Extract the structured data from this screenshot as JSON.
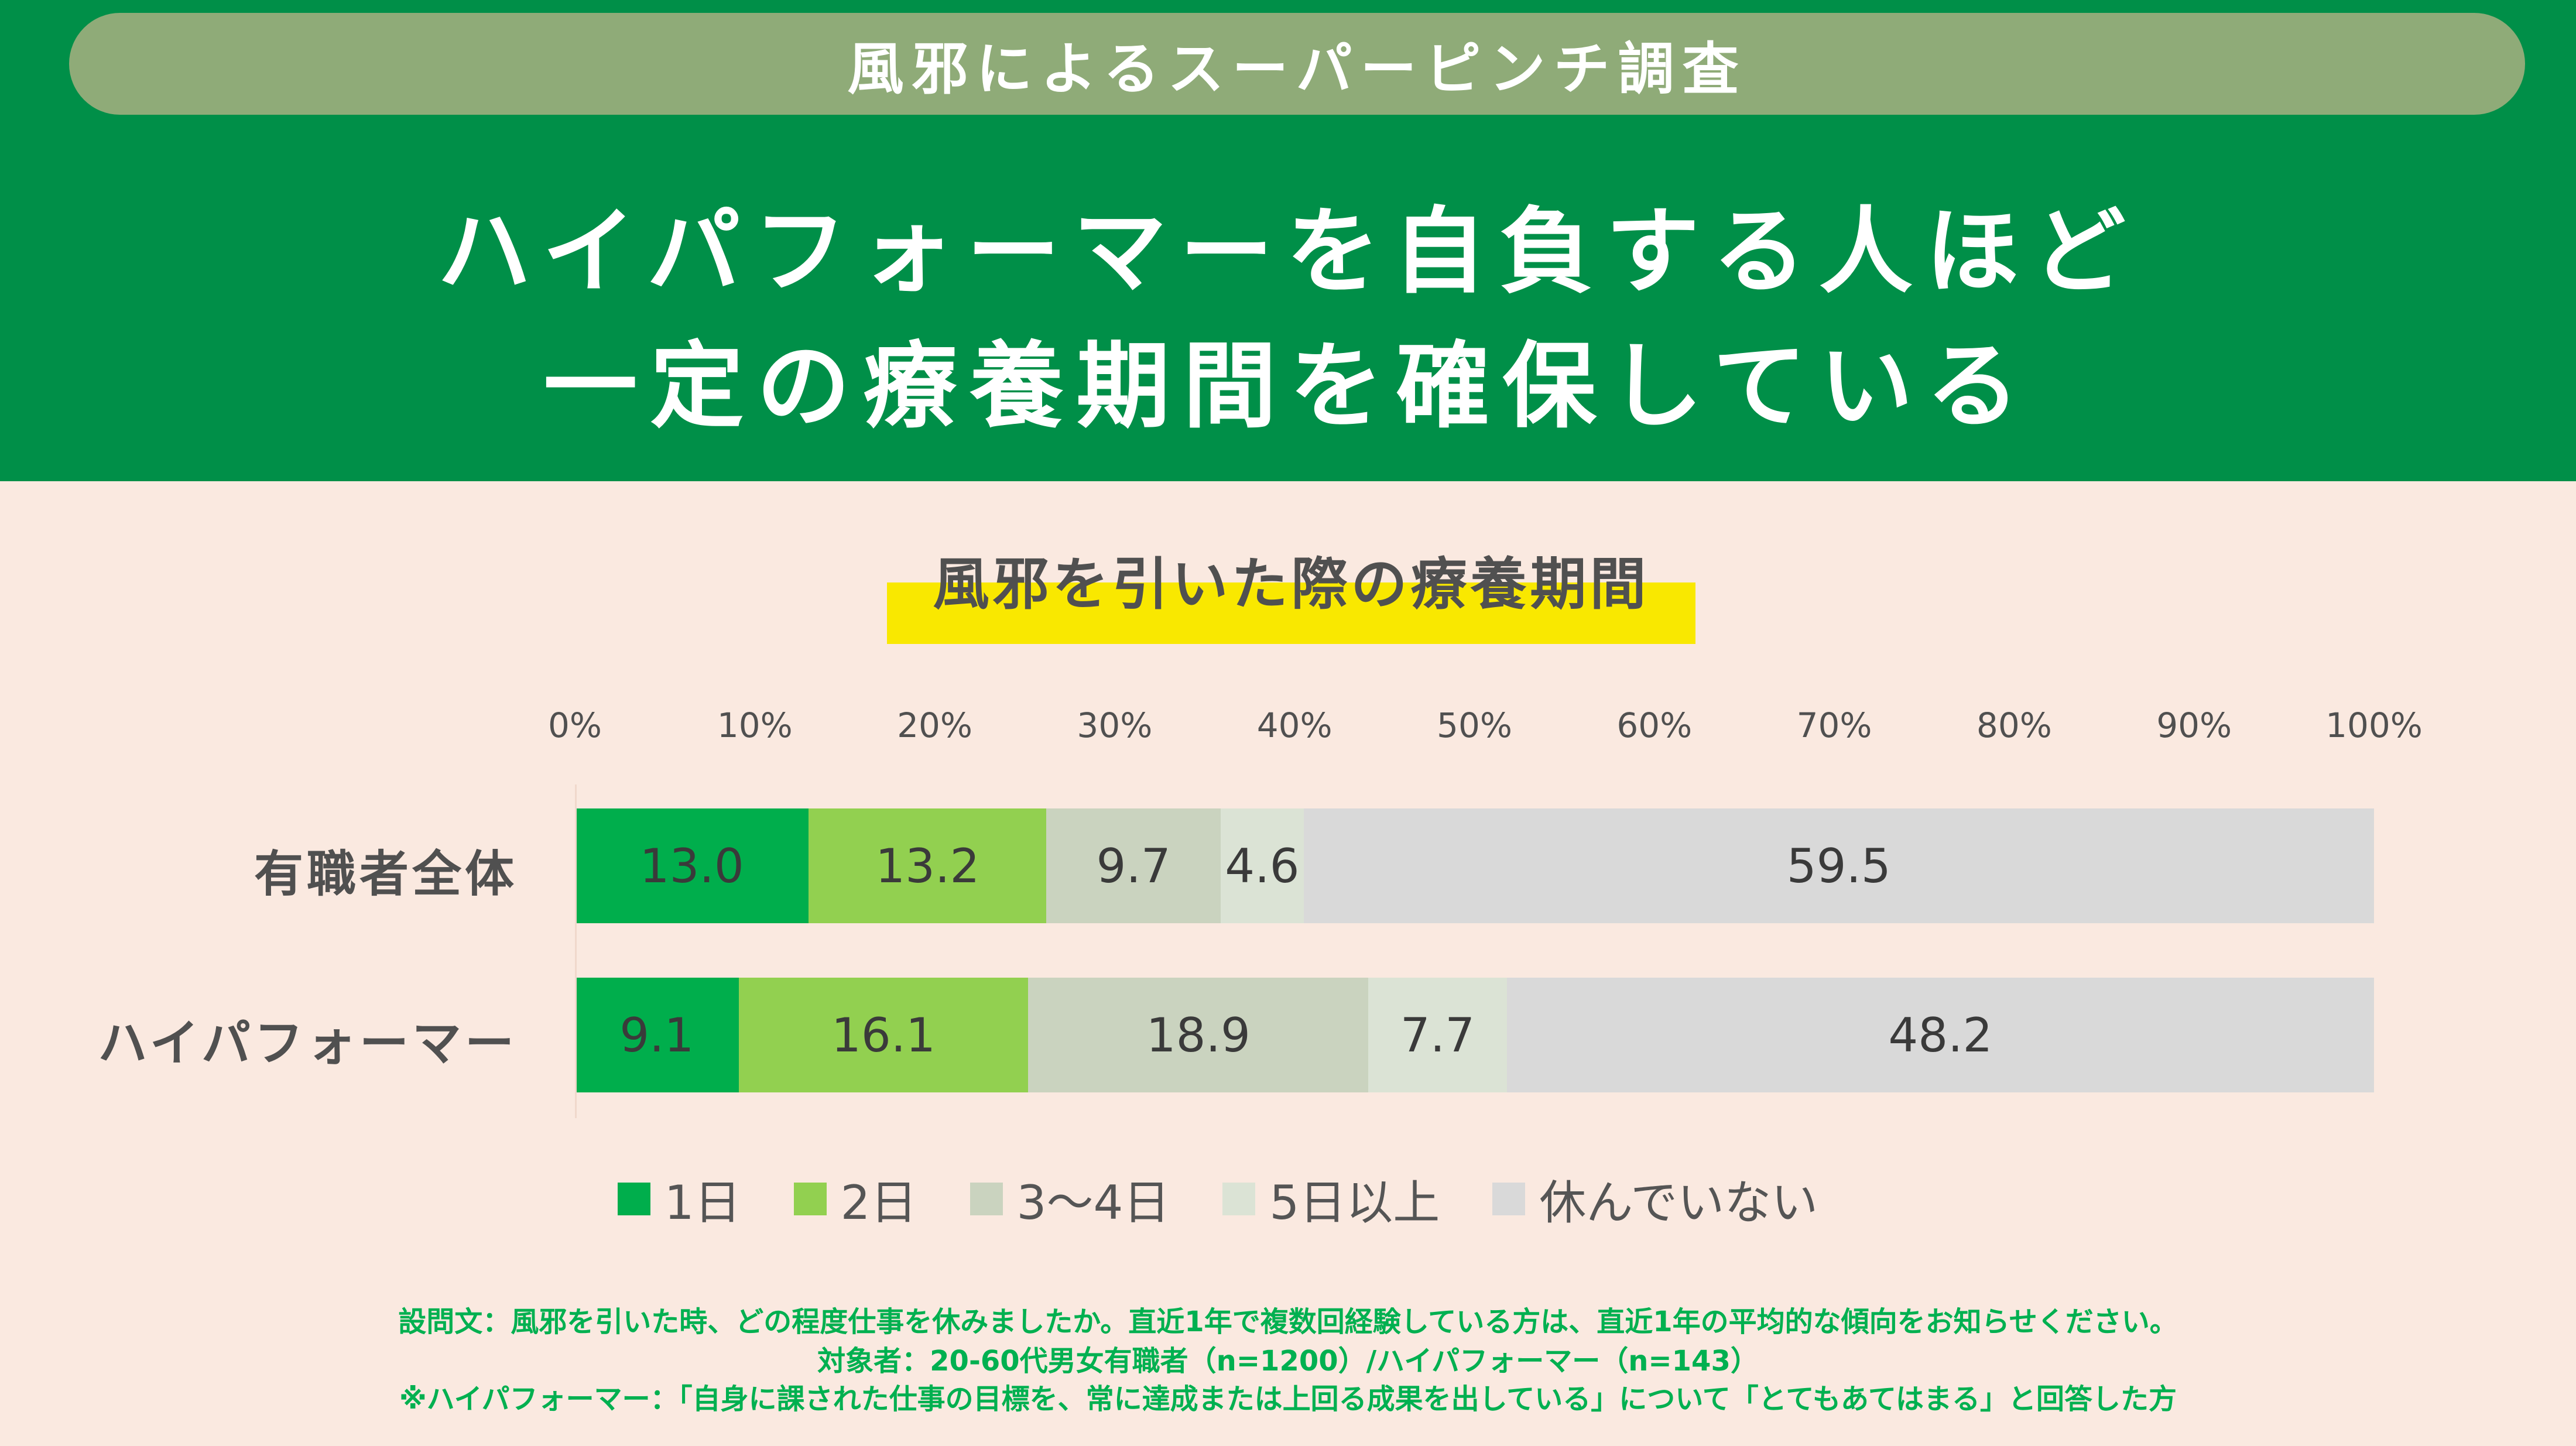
{
  "header": {
    "survey_label": "風邪によるスーパーピンチ調査",
    "headline_line1": "ハイパフォーマーを自負する人ほど",
    "headline_line2": "一定の療養期間を確保している"
  },
  "colors": {
    "header_bg": "#008f48",
    "pill_bg": "#8fab78",
    "page_bg": "#fae9e0",
    "highlight": "#f9e800"
  },
  "chart_data": {
    "type": "bar",
    "orientation": "horizontal",
    "stacked": true,
    "title": "風邪を引いた際の療養期間",
    "xlim": [
      0,
      100
    ],
    "tick_labels": [
      "0%",
      "10%",
      "20%",
      "30%",
      "40%",
      "50%",
      "60%",
      "70%",
      "80%",
      "90%",
      "100%"
    ],
    "categories": [
      "有職者全体",
      "ハイパフォーマー"
    ],
    "series": [
      {
        "name": "1日",
        "color": "#00ae4c",
        "values": [
          13.0,
          9.1
        ]
      },
      {
        "name": "2日",
        "color": "#92d050",
        "values": [
          13.2,
          16.1
        ]
      },
      {
        "name": "3～4日",
        "color": "#cad3bf",
        "values": [
          9.7,
          18.9
        ]
      },
      {
        "name": "5日以上",
        "color": "#dbe3d5",
        "values": [
          4.6,
          7.7
        ]
      },
      {
        "name": "休んでいない",
        "color": "#d9d9d9",
        "values": [
          59.5,
          48.2
        ]
      }
    ],
    "legend": "bottom",
    "grid": false
  },
  "footnotes": [
    "設問文：風邪を引いた時、どの程度仕事を休みましたか。直近1年で複数回経験している方は、直近1年の平均的な傾向をお知らせください。",
    "対象者：20-60代男女有職者（n=1200）/ハイパフォーマー（n=143）",
    "※ハイパフォーマー：「自身に課された仕事の目標を、常に達成または上回る成果を出している」について「とてもあてはまる」と回答した方"
  ]
}
